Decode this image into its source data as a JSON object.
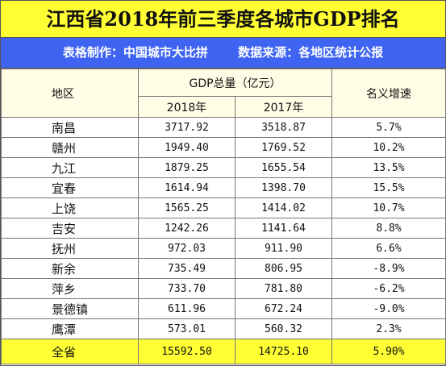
{
  "header": {
    "title": "江西省2018年前三季度各城市GDP排名",
    "source_left": "表格制作：中国城市大比拼",
    "source_right": "数据来源：各地区统计公报"
  },
  "table": {
    "head": {
      "region": "地区",
      "gdp": "GDP总量（亿元）",
      "year1": "2018年",
      "year2": "2017年",
      "growth": "名义增速"
    },
    "rows": [
      [
        "南昌",
        "3717.92",
        "3518.87",
        "5.7%"
      ],
      [
        "赣州",
        "1949.40",
        "1769.52",
        "10.2%"
      ],
      [
        "九江",
        "1879.25",
        "1655.54",
        "13.5%"
      ],
      [
        "宜春",
        "1614.94",
        "1398.70",
        "15.5%"
      ],
      [
        "上饶",
        "1565.25",
        "1414.02",
        "10.7%"
      ],
      [
        "吉安",
        "1242.26",
        "1141.64",
        "8.8%"
      ],
      [
        "抚州",
        "972.03",
        "911.90",
        "6.6%"
      ],
      [
        "新余",
        "735.49",
        "806.95",
        "-8.9%"
      ],
      [
        "萍乡",
        "733.70",
        "781.80",
        "-6.2%"
      ],
      [
        "景德镇",
        "611.96",
        "672.24",
        "-9.0%"
      ],
      [
        "鹰潭",
        "573.01",
        "560.32",
        "2.3%"
      ]
    ],
    "total": [
      "全省",
      "15592.50",
      "14725.10",
      "5.90%"
    ]
  }
}
